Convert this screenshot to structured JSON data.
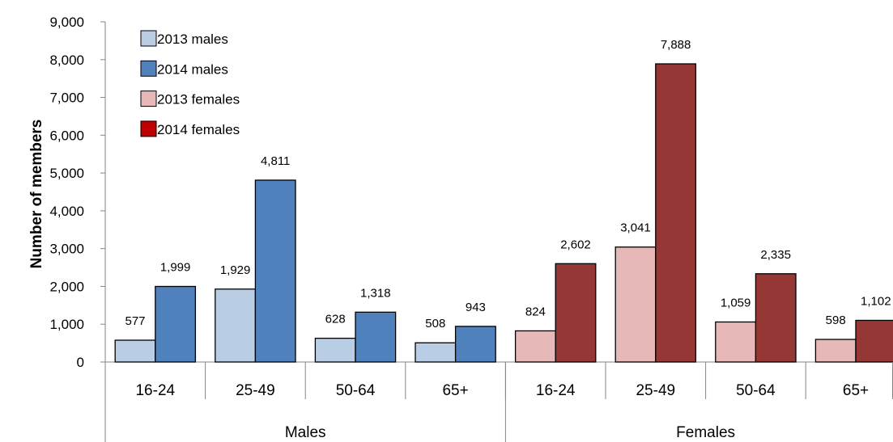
{
  "chart_data": {
    "type": "bar",
    "ylabel": "Number of members",
    "ylim": [
      0,
      9000
    ],
    "yticks": [
      0,
      1000,
      2000,
      3000,
      4000,
      5000,
      6000,
      7000,
      8000,
      9000
    ],
    "ytick_labels": [
      "0",
      "1,000",
      "2,000",
      "3,000",
      "4,000",
      "5,000",
      "6,000",
      "7,000",
      "8,000",
      "9,000"
    ],
    "grid": false,
    "legend_position": "top-left",
    "groups": [
      {
        "label": "Males",
        "categories": [
          "16-24",
          "25-49",
          "50-64",
          "65+"
        ],
        "series": [
          {
            "name": "2013 males",
            "values": [
              577,
              1929,
              628,
              508
            ],
            "value_labels": [
              "577",
              "1,929",
              "628",
              "508"
            ],
            "color": "#B9CDE5"
          },
          {
            "name": "2014 males",
            "values": [
              1999,
              4811,
              1318,
              943
            ],
            "value_labels": [
              "1,999",
              "4,811",
              "1,318",
              "943"
            ],
            "color": "#4F81BD"
          }
        ]
      },
      {
        "label": "Females",
        "categories": [
          "16-24",
          "25-49",
          "50-64",
          "65+"
        ],
        "series": [
          {
            "name": "2013 females",
            "values": [
              824,
              3041,
              1059,
              598
            ],
            "value_labels": [
              "824",
              "3,041",
              "1,059",
              "598"
            ],
            "color": "#E6B9B8"
          },
          {
            "name": "2014 females",
            "values": [
              2602,
              7888,
              2335,
              1102
            ],
            "value_labels": [
              "2,602",
              "7,888",
              "2,335",
              "1,102"
            ],
            "color": "#953735"
          }
        ]
      }
    ],
    "legend": [
      {
        "name": "2013 males",
        "color": "#B9CDE5"
      },
      {
        "name": "2014 males",
        "color": "#4F81BD"
      },
      {
        "name": "2013 females",
        "color": "#E6B9B8"
      },
      {
        "name": "2014 females",
        "color": "#C00000"
      }
    ]
  }
}
